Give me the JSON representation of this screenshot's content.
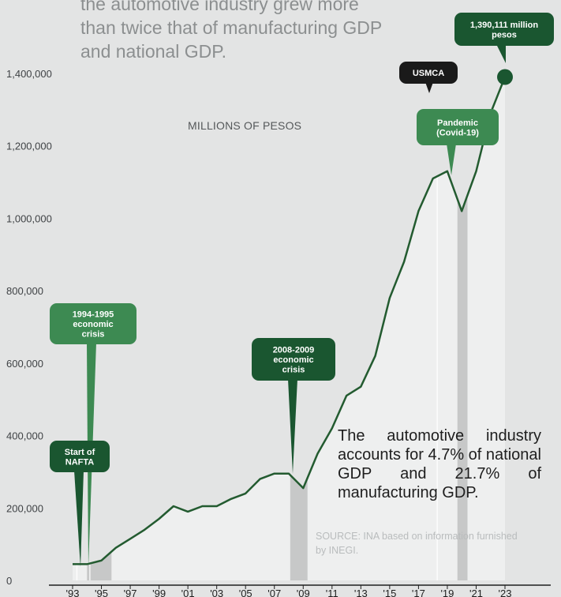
{
  "intro_lines": [
    "the automotive industry grew more",
    "than twice that of manufacturing GDP",
    "and national GDP."
  ],
  "note": "The automotive industry accounts for 4.7% of national GDP and 21.7% of manufacturing GDP.",
  "source": "SOURCE: INA based on information furnished by INEGI.",
  "colors": {
    "background": "#e3e4e4",
    "line": "#235b30",
    "dark_green": "#1a5630",
    "light_green": "#3d8a52",
    "black": "#1a1a1a",
    "band": "#c7c8c8",
    "area": "#eeefef"
  },
  "chart_data": {
    "type": "line",
    "title": "",
    "xlabel": "",
    "ylabel": "MILLIONS OF PESOS",
    "ylim": [
      0,
      1400000
    ],
    "y_ticks": [
      "0",
      "200,000",
      "400,000",
      "600,000",
      "800,000",
      "1,000,000",
      "1,200,000",
      "1,400,000"
    ],
    "y_tick_values": [
      0,
      200000,
      400000,
      600000,
      800000,
      1000000,
      1200000,
      1400000
    ],
    "x_ticks": [
      "'93",
      "'95",
      "'97",
      "'99",
      "'01",
      "'03",
      "'05",
      "'07",
      "'09",
      "'11",
      "'13",
      "'15",
      "'17",
      "'19",
      "'21",
      "'23"
    ],
    "x_tick_years": [
      1993,
      1995,
      1997,
      1999,
      2001,
      2003,
      2005,
      2007,
      2009,
      2011,
      2013,
      2015,
      2017,
      2019,
      2021,
      2023
    ],
    "series": [
      {
        "x": [
          1993,
          1994,
          1995,
          1996,
          1997,
          1998,
          1999,
          2000,
          2001,
          2002,
          2003,
          2004,
          2005,
          2006,
          2007,
          2008,
          2009,
          2010,
          2011,
          2012,
          2013,
          2014,
          2015,
          2016,
          2017,
          2018,
          2019,
          2020,
          2021,
          2022,
          2023
        ],
        "values": [
          45000,
          45000,
          55000,
          90000,
          115000,
          140000,
          170000,
          205000,
          190000,
          205000,
          205000,
          225000,
          240000,
          280000,
          295000,
          295000,
          255000,
          350000,
          420000,
          510000,
          535000,
          620000,
          780000,
          880000,
          1020000,
          1110000,
          1130000,
          1020000,
          1130000,
          1290000,
          1390111
        ]
      }
    ],
    "bands": [
      {
        "from": 1994,
        "to": 1995.7
      },
      {
        "from": 2008.1,
        "to": 2009.3
      },
      {
        "from": 2019.7,
        "to": 2020.4
      }
    ],
    "vertical_lines": [
      1993.3,
      1994.2,
      2018.3
    ],
    "annotations": [
      {
        "text_lines": [
          "1,390,111 million",
          "pesos"
        ],
        "x": 2023,
        "y": 1390111,
        "style": "dark_green"
      },
      {
        "text_lines": [
          "USMCA"
        ],
        "x": 2018.3,
        "y": 1135000,
        "style": "black"
      },
      {
        "text_lines": [
          "Pandemic",
          "(Covid-19)"
        ],
        "x": 2020,
        "y": 1030000,
        "style": "light_green"
      },
      {
        "text_lines": [
          "2008-2009",
          "economic",
          "crisis"
        ],
        "x": 2009,
        "y": 270000,
        "style": "dark_green"
      },
      {
        "text_lines": [
          "1994-1995",
          "economic",
          "crisis"
        ],
        "x": 1994.7,
        "y": 55000,
        "style": "light_green"
      },
      {
        "text_lines": [
          "Start of",
          "NAFTA"
        ],
        "x": 1994,
        "y": 45000,
        "style": "dark_green"
      }
    ]
  }
}
